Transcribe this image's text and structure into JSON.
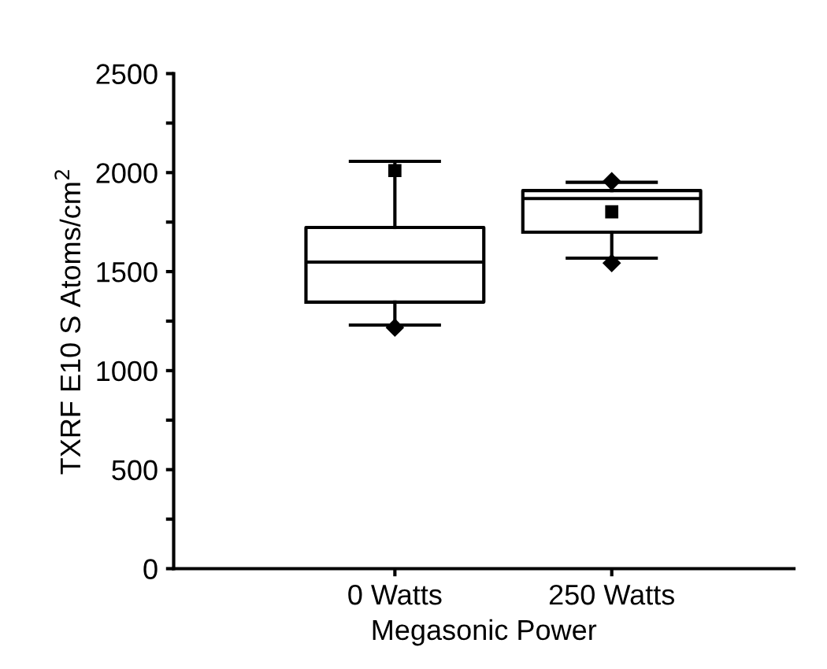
{
  "chart_data": {
    "type": "box",
    "xlabel": "Megasonic Power",
    "ylabel": "TXRF E10 S Atoms/cm$^{2}$",
    "categories": [
      "0 Watts",
      "250 Watts"
    ],
    "boxes": [
      {
        "low": 1230,
        "q1": 1346,
        "median": 1548,
        "q3": 1723,
        "high": 2057,
        "mean": 2010,
        "outliers": [
          1217
        ]
      },
      {
        "low": 1568,
        "q1": 1699,
        "median": 1869,
        "q3": 1909,
        "high": 1951,
        "mean": 1802,
        "outliers": [
          1956,
          1543
        ]
      }
    ],
    "color": "#000000",
    "ylim": [
      0,
      2500
    ],
    "yticks": [
      0,
      {
        "value": 250,
        "label": null
      },
      500,
      {
        "value": 750,
        "label": null
      },
      1000,
      {
        "value": 1250,
        "label": null
      },
      1500,
      {
        "value": 1750,
        "label": null
      },
      2000,
      {
        "value": 2250,
        "label": null
      },
      2500
    ],
    "grid": false,
    "legend": false
  }
}
